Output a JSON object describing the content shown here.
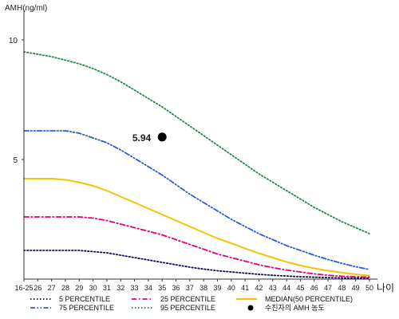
{
  "chart_data": {
    "type": "line",
    "ylabel": "AMH(ng/ml)",
    "xlabel": "나이",
    "ylim": [
      0,
      11
    ],
    "y_ticks": [
      {
        "value": 5,
        "label": "5"
      },
      {
        "value": 10,
        "label": "10"
      }
    ],
    "categories": [
      "16-25",
      "26",
      "27",
      "28",
      "29",
      "30",
      "31",
      "32",
      "33",
      "34",
      "35",
      "36",
      "37",
      "38",
      "39",
      "40",
      "41",
      "42",
      "43",
      "44",
      "45",
      "46",
      "47",
      "48",
      "49",
      "50"
    ],
    "grid": false,
    "legend_placement": "bottom",
    "series": [
      {
        "name": "5 PERCENTILE",
        "color": "#0a0a6e",
        "dash": "dot",
        "values": [
          1.2,
          1.2,
          1.2,
          1.2,
          1.2,
          1.15,
          1.1,
          1.0,
          0.9,
          0.8,
          0.7,
          0.6,
          0.5,
          0.42,
          0.35,
          0.3,
          0.25,
          0.2,
          0.16,
          0.13,
          0.1,
          0.08,
          0.06,
          0.05,
          0.04,
          0.03
        ]
      },
      {
        "name": "25 PERCENTILE",
        "color": "#e0007a",
        "dash": "dashdot",
        "values": [
          2.6,
          2.6,
          2.6,
          2.6,
          2.6,
          2.55,
          2.45,
          2.3,
          2.15,
          2.0,
          1.85,
          1.65,
          1.45,
          1.25,
          1.05,
          0.9,
          0.75,
          0.6,
          0.48,
          0.38,
          0.3,
          0.22,
          0.16,
          0.12,
          0.1,
          0.08
        ]
      },
      {
        "name": "MEDIAN(50 PERCENTILE)",
        "color": "#f5c400",
        "dash": "solid",
        "values": [
          4.2,
          4.2,
          4.2,
          4.15,
          4.05,
          3.9,
          3.7,
          3.45,
          3.2,
          2.95,
          2.7,
          2.45,
          2.2,
          1.95,
          1.7,
          1.5,
          1.28,
          1.08,
          0.9,
          0.72,
          0.57,
          0.45,
          0.35,
          0.27,
          0.2,
          0.15
        ]
      },
      {
        "name": "75 PERCENTILE",
        "color": "#2a5bd7",
        "dash": "dashdotdot",
        "values": [
          6.2,
          6.2,
          6.2,
          6.2,
          6.1,
          5.9,
          5.7,
          5.4,
          5.05,
          4.7,
          4.35,
          3.95,
          3.55,
          3.2,
          2.85,
          2.5,
          2.2,
          1.9,
          1.65,
          1.4,
          1.2,
          1.0,
          0.82,
          0.66,
          0.52,
          0.4
        ]
      },
      {
        "name": "95 PERCENTILE",
        "color": "#1e8a4a",
        "dash": "dot",
        "values": [
          9.5,
          9.4,
          9.3,
          9.15,
          9.0,
          8.8,
          8.55,
          8.25,
          7.9,
          7.55,
          7.2,
          6.8,
          6.4,
          6.0,
          5.6,
          5.2,
          4.8,
          4.4,
          4.05,
          3.7,
          3.35,
          3.0,
          2.7,
          2.4,
          2.15,
          1.9
        ]
      }
    ],
    "marker": {
      "label": "수진자의 AMH 농도",
      "x": "35",
      "y": 5.94,
      "value_label": "5.94"
    }
  }
}
